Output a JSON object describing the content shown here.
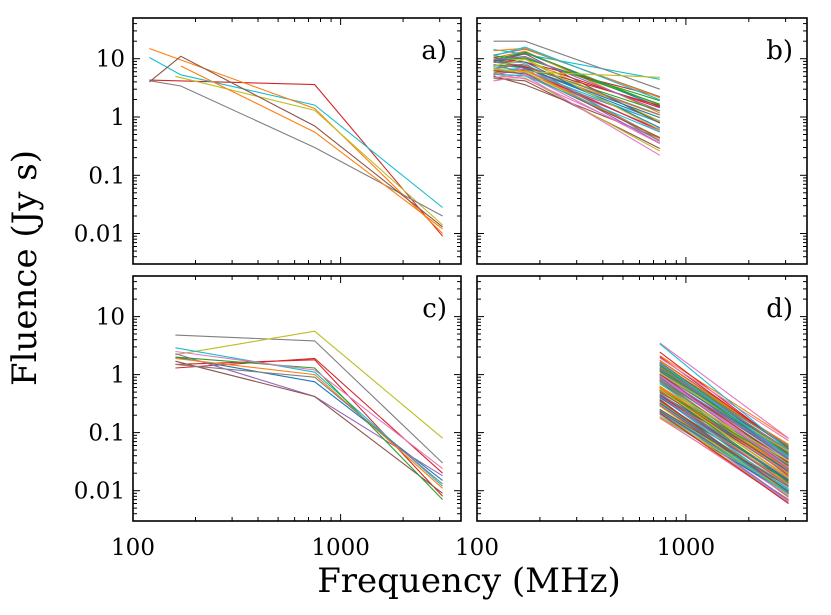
{
  "figure": {
    "ylabel": "Fluence (Jy s)",
    "xlabel": "Frequency (MHz)"
  },
  "chart_data": [
    {
      "type": "line",
      "panel": "a)",
      "xscale": "log",
      "yscale": "log",
      "xlim": [
        100,
        3800
      ],
      "ylim": [
        0.003,
        50
      ],
      "x_ticks": [
        100,
        1000
      ],
      "y_ticks": [
        0.01,
        0.1,
        1,
        10
      ],
      "y_tick_labels": [
        "0.01",
        "0.1",
        "1",
        "10"
      ],
      "series": [
        {
          "color": "#d62728",
          "x": [
            120,
            750,
            3100
          ],
          "y": [
            4.3,
            3.6,
            0.009
          ]
        },
        {
          "color": "#17becf",
          "x": [
            120,
            170,
            750,
            3100
          ],
          "y": [
            10.5,
            5.3,
            1.6,
            0.028
          ]
        },
        {
          "color": "#ff7f0e",
          "x": [
            120,
            750,
            3100
          ],
          "y": [
            15,
            1.4,
            0.01
          ]
        },
        {
          "color": "#bcbd22",
          "x": [
            160,
            750,
            3100
          ],
          "y": [
            5,
            1.3,
            0.014
          ]
        },
        {
          "color": "#7f7f7f",
          "x": [
            120,
            170,
            750,
            3100
          ],
          "y": [
            4.2,
            3.4,
            0.3,
            0.02
          ]
        },
        {
          "color": "#8c564b",
          "x": [
            120,
            170,
            750,
            3100
          ],
          "y": [
            4,
            11,
            0.7,
            0.013
          ]
        },
        {
          "color": "#ff7f0e",
          "x": [
            170,
            750,
            3100
          ],
          "y": [
            7.5,
            0.55,
            0.012
          ]
        }
      ]
    },
    {
      "type": "line",
      "panel": "b)",
      "xscale": "log",
      "yscale": "log",
      "xlim": [
        100,
        3800
      ],
      "ylim": [
        0.003,
        50
      ],
      "x_ticks": [
        100,
        1000
      ],
      "y_ticks": [
        0.01,
        0.1,
        1,
        10
      ],
      "bundle": {
        "x": [
          120,
          170,
          750
        ],
        "n_series": 40,
        "y_start_range": [
          3,
          20
        ],
        "y_end_range": [
          0.15,
          5
        ]
      },
      "series": [
        {
          "color": "#7f7f7f",
          "x": [
            120,
            170,
            750
          ],
          "y": [
            20,
            20,
            3.0
          ]
        },
        {
          "color": "#bcbd22",
          "x": [
            120,
            170,
            750
          ],
          "y": [
            6.5,
            6,
            4.8
          ]
        }
      ]
    },
    {
      "type": "line",
      "panel": "c)",
      "xscale": "log",
      "yscale": "log",
      "xlim": [
        100,
        3800
      ],
      "ylim": [
        0.003,
        50
      ],
      "x_ticks": [
        100,
        1000
      ],
      "x_tick_labels": [
        "100",
        "1000"
      ],
      "y_ticks": [
        0.01,
        0.1,
        1,
        10
      ],
      "y_tick_labels": [
        "0.01",
        "0.1",
        "1",
        "10"
      ],
      "series": [
        {
          "color": "#7f7f7f",
          "x": [
            160,
            750,
            3100
          ],
          "y": [
            4.8,
            3.8,
            0.03
          ]
        },
        {
          "color": "#bcbd22",
          "x": [
            160,
            750,
            3100
          ],
          "y": [
            2.2,
            5.6,
            0.08
          ]
        },
        {
          "color": "#d62728",
          "x": [
            160,
            750,
            3100
          ],
          "y": [
            1.3,
            1.9,
            0.02
          ]
        },
        {
          "color": "#d62728",
          "x": [
            160,
            750,
            3100
          ],
          "y": [
            1.5,
            1.8,
            0.008
          ]
        },
        {
          "color": "#17becf",
          "x": [
            160,
            750,
            3100
          ],
          "y": [
            2.9,
            1.1,
            0.012
          ]
        },
        {
          "color": "#1f77b4",
          "x": [
            160,
            750,
            3100
          ],
          "y": [
            2.0,
            0.75,
            0.015
          ]
        },
        {
          "color": "#9467bd",
          "x": [
            160,
            750,
            3100
          ],
          "y": [
            2.3,
            0.42,
            0.018
          ]
        },
        {
          "color": "#8c564b",
          "x": [
            160,
            750,
            3100
          ],
          "y": [
            1.7,
            0.42,
            0.009
          ]
        },
        {
          "color": "#2ca02c",
          "x": [
            160,
            750,
            3100
          ],
          "y": [
            2.0,
            1.3,
            0.007
          ]
        },
        {
          "color": "#e377c2",
          "x": [
            160,
            750,
            3100
          ],
          "y": [
            2.5,
            1.2,
            0.024
          ]
        },
        {
          "color": "#ff7f0e",
          "x": [
            160,
            750,
            3100
          ],
          "y": [
            1.9,
            1.0,
            0.011
          ]
        },
        {
          "color": "#7f7f7f",
          "x": [
            160,
            750,
            3100
          ],
          "y": [
            1.5,
            0.9,
            0.013
          ]
        }
      ]
    },
    {
      "type": "line",
      "panel": "d)",
      "xscale": "log",
      "yscale": "log",
      "xlim": [
        100,
        3800
      ],
      "ylim": [
        0.003,
        50
      ],
      "x_ticks": [
        100,
        1000
      ],
      "x_tick_labels": [
        "100",
        "1000"
      ],
      "y_ticks": [
        0.01,
        0.1,
        1,
        10
      ],
      "bundle": {
        "x": [
          750,
          3100
        ],
        "n_series": 120,
        "y_start_range": [
          0.12,
          3.5
        ],
        "y_end_range": [
          0.006,
          0.08
        ]
      },
      "series": [
        {
          "color": "#e377c2",
          "x": [
            750,
            3100
          ],
          "y": [
            3.5,
            0.08
          ]
        },
        {
          "color": "#17becf",
          "x": [
            750,
            3100
          ],
          "y": [
            3.4,
            0.05
          ]
        }
      ]
    }
  ]
}
